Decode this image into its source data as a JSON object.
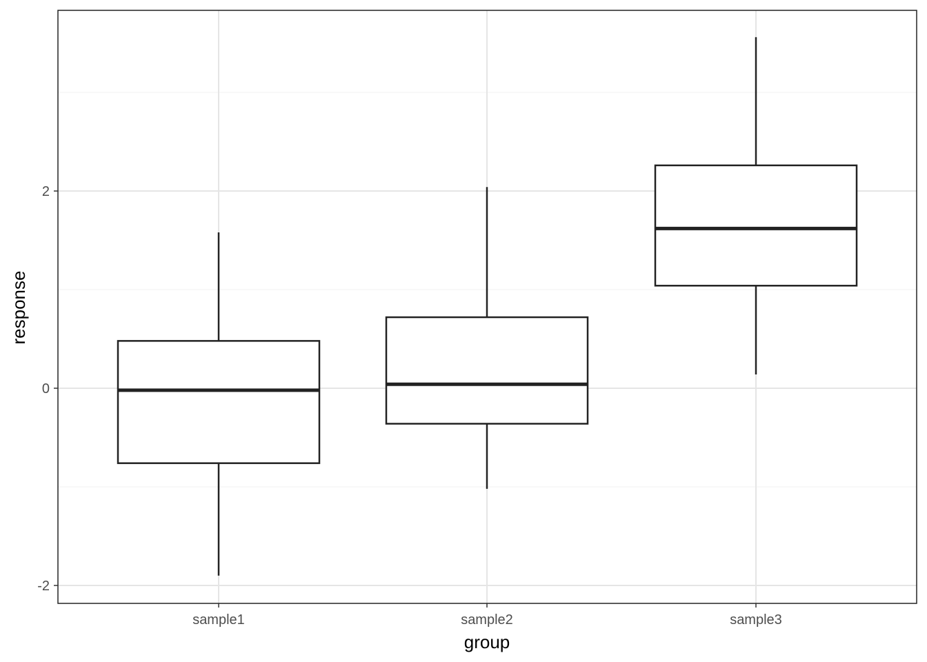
{
  "chart_data": {
    "type": "boxplot",
    "xlabel": "group",
    "ylabel": "response",
    "ylim": [
      -2.2,
      3.8
    ],
    "yticks": [
      -2,
      0,
      2
    ],
    "ytick_labels": [
      "-2",
      "0",
      "2"
    ],
    "grid": true,
    "categories": [
      "sample1",
      "sample2",
      "sample3"
    ],
    "boxes": [
      {
        "category": "sample1",
        "whisker_low": -1.9,
        "q1": -0.76,
        "median": -0.02,
        "q3": 0.48,
        "whisker_high": 1.58
      },
      {
        "category": "sample2",
        "whisker_low": -1.02,
        "q1": -0.36,
        "median": 0.04,
        "q3": 0.72,
        "whisker_high": 2.04
      },
      {
        "category": "sample3",
        "whisker_low": 0.14,
        "q1": 1.04,
        "median": 1.62,
        "q3": 2.26,
        "whisker_high": 3.56
      }
    ],
    "colors": {
      "box_stroke": "#222222",
      "box_fill": "#ffffff",
      "grid_major": "#e5e5e5",
      "grid_minor": "#f0f0f0",
      "panel_border": "#222222",
      "tick_text": "#4d4d4d"
    }
  }
}
